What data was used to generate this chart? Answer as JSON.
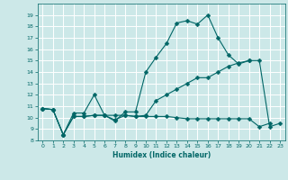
{
  "title": "",
  "xlabel": "Humidex (Indice chaleur)",
  "bg_color": "#cce8e8",
  "grid_color": "#ffffff",
  "line_color": "#006666",
  "x": [
    0,
    1,
    2,
    3,
    4,
    5,
    6,
    7,
    8,
    9,
    10,
    11,
    12,
    13,
    14,
    15,
    16,
    17,
    18,
    19,
    20,
    21,
    22,
    23
  ],
  "line1": [
    10.8,
    10.7,
    8.5,
    10.4,
    10.4,
    12.0,
    10.2,
    9.7,
    10.5,
    10.5,
    14.0,
    15.3,
    16.5,
    18.3,
    18.5,
    18.2,
    19.0,
    17.0,
    15.5,
    14.7,
    15.0,
    15.0,
    9.2,
    9.5
  ],
  "line2": [
    10.8,
    10.7,
    8.5,
    10.1,
    10.1,
    10.2,
    10.2,
    10.2,
    10.2,
    10.1,
    10.2,
    11.5,
    12.0,
    12.5,
    13.0,
    13.5,
    13.5,
    14.0,
    14.5,
    14.8,
    15.0,
    null,
    null,
    null
  ],
  "line3": [
    10.8,
    10.7,
    8.5,
    10.1,
    10.1,
    10.2,
    10.2,
    9.8,
    10.2,
    10.1,
    10.1,
    10.1,
    10.1,
    10.0,
    9.9,
    9.9,
    9.9,
    9.9,
    9.9,
    9.9,
    9.9,
    9.2,
    9.5,
    null
  ],
  "ylim": [
    8,
    20
  ],
  "xlim": [
    -0.5,
    23.5
  ],
  "yticks": [
    8,
    9,
    10,
    11,
    12,
    13,
    14,
    15,
    16,
    17,
    18,
    19
  ],
  "xticks": [
    0,
    1,
    2,
    3,
    4,
    5,
    6,
    7,
    8,
    9,
    10,
    11,
    12,
    13,
    14,
    15,
    16,
    17,
    18,
    19,
    20,
    21,
    22,
    23
  ]
}
